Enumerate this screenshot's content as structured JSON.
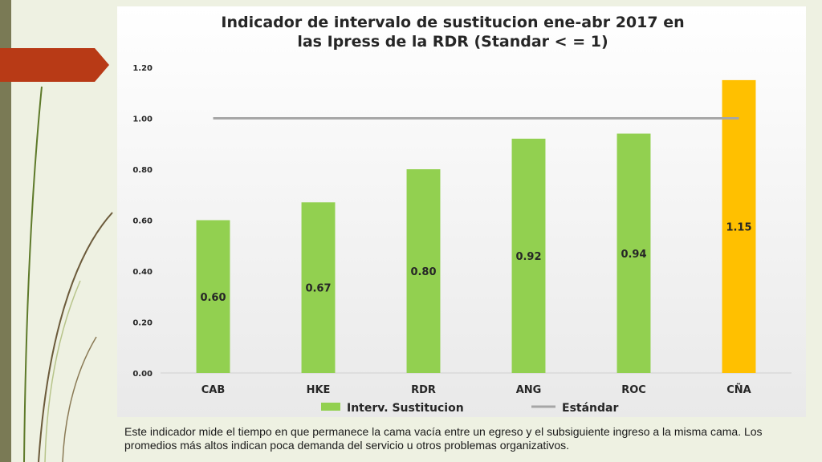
{
  "slide": {
    "caption": "Este indicador mide el tiempo en que permanece  la cama vacía entre un egreso y el subsiguiente ingreso a la misma cama. Los promedios más altos indican poca demanda del servicio u otros problemas organizativos.",
    "colors": {
      "background": "#eef1e2",
      "left_bar": "#7a7a55",
      "accent": "#b83a16"
    }
  },
  "chart_data": {
    "type": "bar",
    "title": "Indicador de intervalo de sustitucion ene-abr 2017 en las Ipress de la RDR (Standar < = 1)",
    "title_lines": [
      "Indicador de intervalo de sustitucion ene-abr 2017 en",
      "las Ipress de la RDR (Standar < = 1)"
    ],
    "categories": [
      "CAB",
      "HKE",
      "RDR",
      "ANG",
      "ROC",
      "CÑA"
    ],
    "series": [
      {
        "name": "Interv. Sustitucion",
        "values": [
          0.6,
          0.67,
          0.8,
          0.92,
          0.94,
          1.15
        ],
        "color": "#92d050",
        "highlight_color": "#ffc000",
        "highlight_index": 5
      },
      {
        "name": "Estándar",
        "type": "line",
        "values": [
          1.0,
          1.0,
          1.0,
          1.0,
          1.0,
          1.0
        ],
        "color": "#a6a6a6"
      }
    ],
    "data_labels": [
      "0.60",
      "0.67",
      "0.80",
      "0.92",
      "0.94",
      "1.15"
    ],
    "y_ticks": [
      "0.00",
      "0.20",
      "0.40",
      "0.60",
      "0.80",
      "1.00",
      "1.20"
    ],
    "y_tick_values": [
      0,
      0.2,
      0.4,
      0.6,
      0.8,
      1.0,
      1.2
    ],
    "ylim": [
      0,
      1.2
    ],
    "grid": false,
    "legend_position": "bottom",
    "xlabel": "",
    "ylabel": ""
  }
}
